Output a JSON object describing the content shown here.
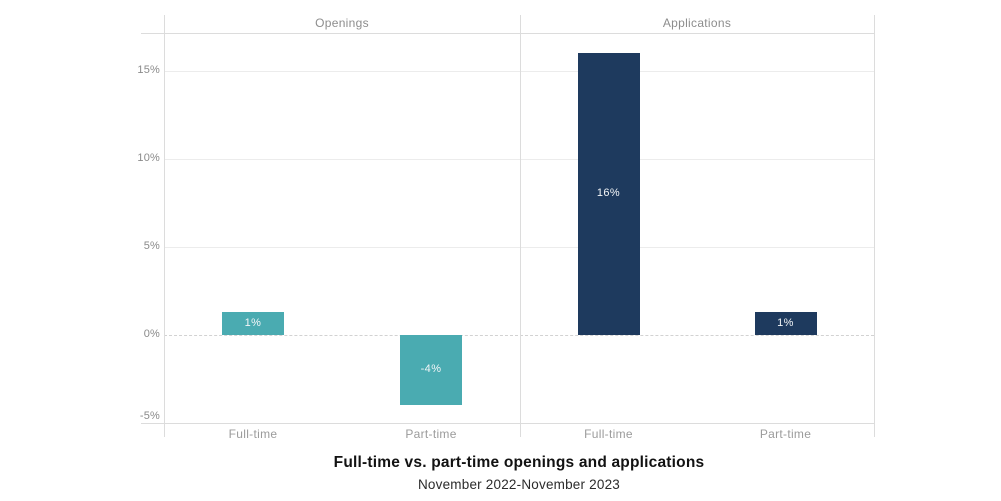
{
  "chart_data": {
    "type": "bar",
    "title": "Full-time vs. part-time openings and applications",
    "subtitle": "November 2022-November 2023",
    "grid": true,
    "legend": "none",
    "panels": [
      {
        "title": "Openings",
        "color": "#4aabb1",
        "categories": [
          "Full-time",
          "Part-time"
        ],
        "values": [
          1,
          -4
        ],
        "value_labels": [
          "1%",
          "-4%"
        ]
      },
      {
        "title": "Applications",
        "color": "#1e3a5e",
        "categories": [
          "Full-time",
          "Part-time"
        ],
        "values": [
          16,
          1
        ],
        "value_labels": [
          "16%",
          "1%"
        ]
      }
    ],
    "y_axis": {
      "ticks": [
        15,
        10,
        5,
        0,
        -5
      ],
      "tick_labels": [
        "15%",
        "10%",
        "5%",
        "0%",
        "-5%"
      ],
      "ylim": [
        -5,
        17
      ],
      "unit": "%"
    },
    "colors": {
      "openings_bar": "#4aabb1",
      "applications_bar": "#1e3a5e",
      "bar_label_text": "#f4f6f8",
      "grid_line": "#ececec",
      "frame_line": "#dcdcdc",
      "axis_text": "#8a8a8a"
    }
  }
}
